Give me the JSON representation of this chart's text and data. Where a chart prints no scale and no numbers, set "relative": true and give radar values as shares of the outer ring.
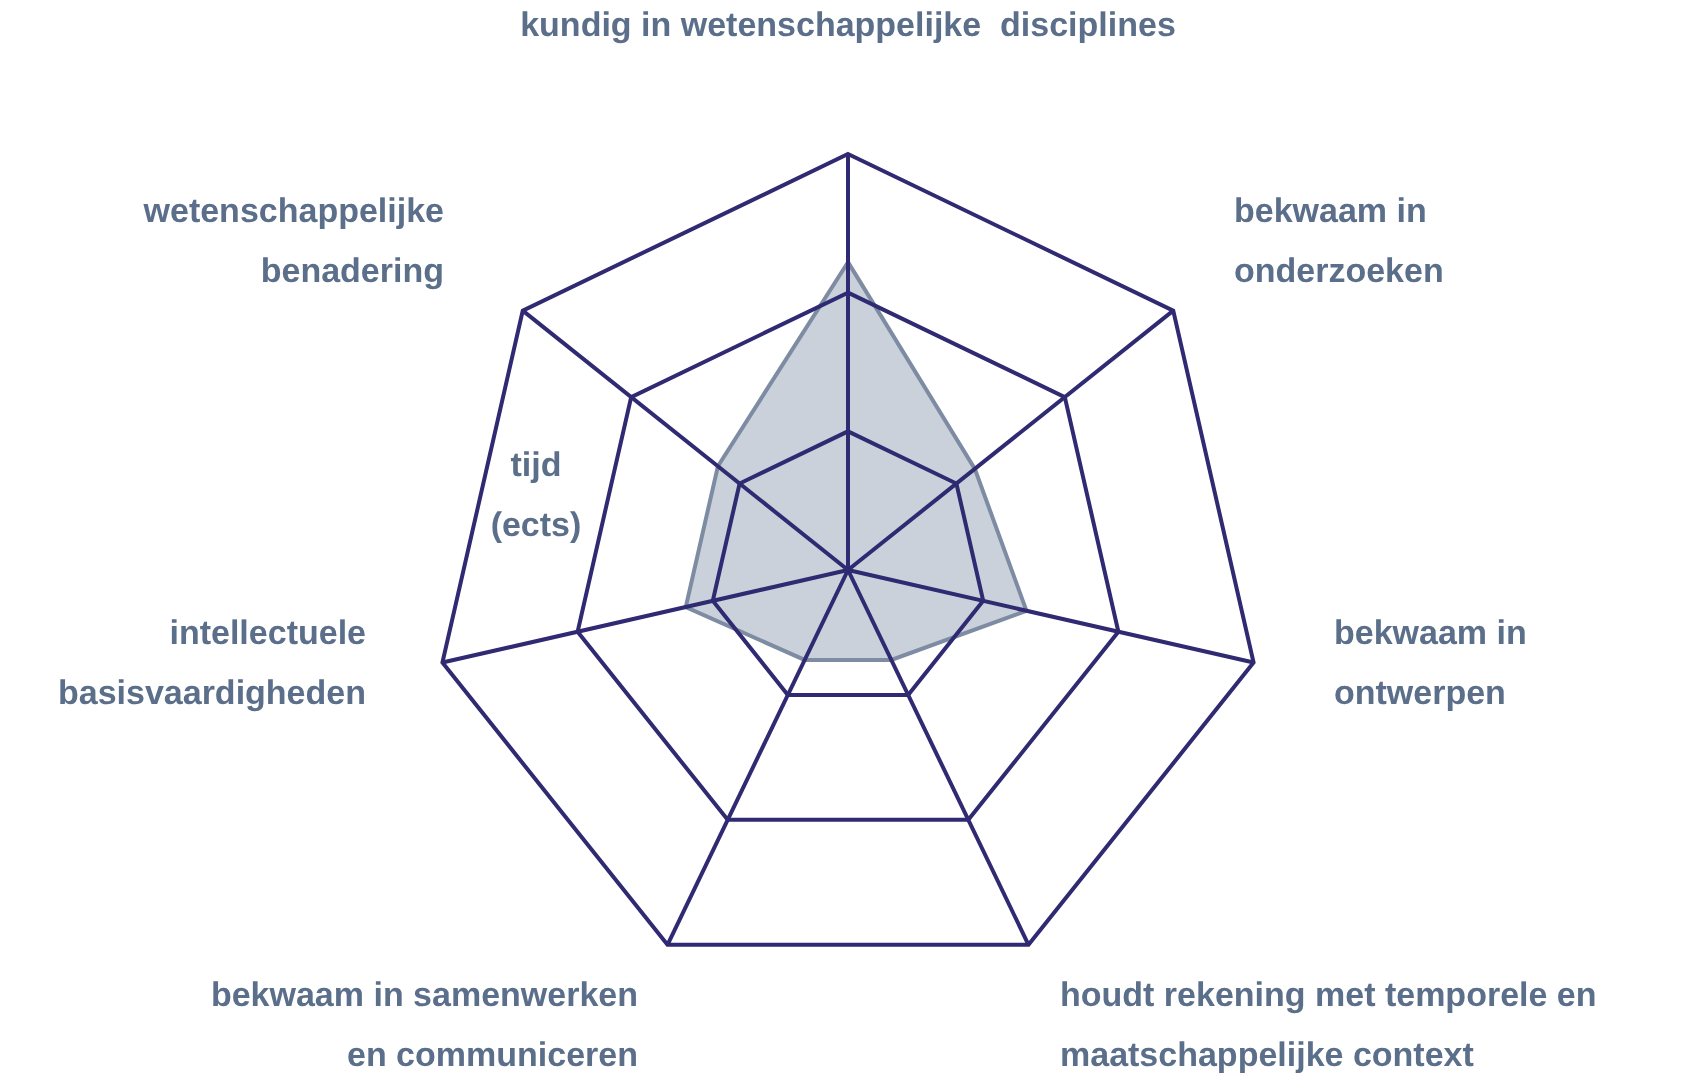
{
  "chart_data": {
    "type": "radar",
    "relative": true,
    "categories": [
      "kundig in wetenschappelijke  disciplines",
      "bekwaam in onderzoeken",
      "bekwaam in ontwerpen",
      "houdt rekening met temporele en maatschappelijke context",
      "bekwaam in samenwerken en communiceren",
      "intellectuele basisvaardigheden",
      "wetenschappelijke benadering"
    ],
    "series": [
      {
        "color": "#c5ccd6",
        "values": [
          0.74,
          0.39,
          0.44,
          0.24,
          0.24,
          0.4,
          0.4
        ]
      }
    ],
    "annotations": [
      "tijd (ects)"
    ]
  }
}
